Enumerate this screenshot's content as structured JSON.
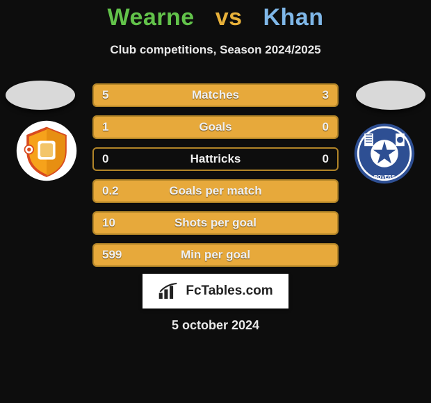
{
  "title": {
    "player1": "Wearne",
    "vs": "vs",
    "player2": "Khan",
    "player1_color": "#62c24a",
    "player2_color": "#7fb7e8"
  },
  "subtitle": "Club competitions, Season 2024/2025",
  "text_color": "#eaeaea",
  "label_color": "#f0f0f0",
  "date": "5 october 2024",
  "watermark": "FcTables.com",
  "background_color": "#0d0d0d",
  "bar_style": {
    "border_color": "#b28528",
    "fill_left_color": "#e7a93b",
    "fill_right_color": "#e7a93b",
    "empty_color": "transparent"
  },
  "bars": [
    {
      "label": "Matches",
      "left_val": "5",
      "right_val": "3",
      "left_frac": 0.62,
      "right_frac": 0.38
    },
    {
      "label": "Goals",
      "left_val": "1",
      "right_val": "0",
      "left_frac": 0.75,
      "right_frac": 0.25
    },
    {
      "label": "Hattricks",
      "left_val": "0",
      "right_val": "0",
      "left_frac": 0.0,
      "right_frac": 0.0
    },
    {
      "label": "Goals per match",
      "left_val": "0.2",
      "right_val": "",
      "left_frac": 1.0,
      "right_frac": 0.0
    },
    {
      "label": "Shots per goal",
      "left_val": "10",
      "right_val": "",
      "left_frac": 1.0,
      "right_frac": 0.0
    },
    {
      "label": "Min per goal",
      "left_val": "599",
      "right_val": "",
      "left_frac": 1.0,
      "right_frac": 0.0
    }
  ],
  "crest_left": {
    "type": "shield",
    "bg": "#ffffff",
    "shield_colors": [
      "#f6a21b",
      "#d84a1f",
      "#ffffff"
    ]
  },
  "crest_right": {
    "type": "round",
    "bg": "#ffffff",
    "primary": "#2e4f93",
    "secondary": "#ffffff"
  }
}
